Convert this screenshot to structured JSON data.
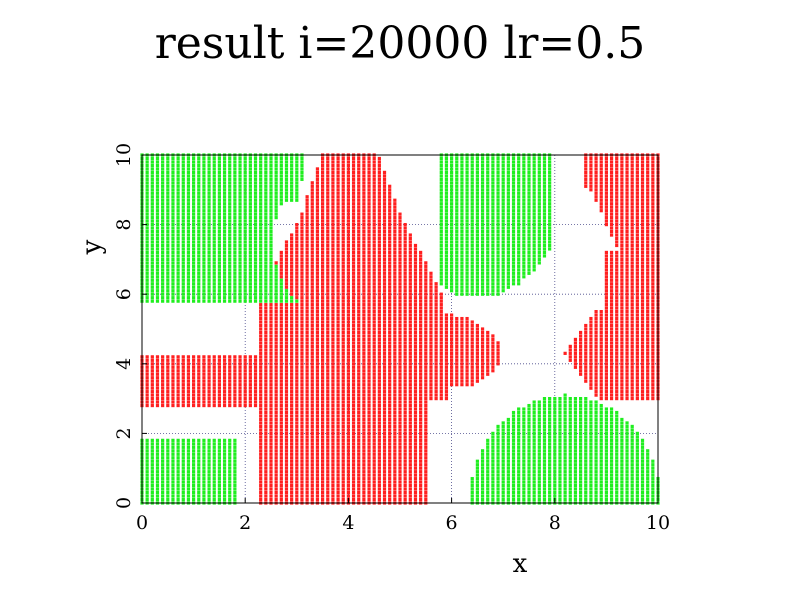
{
  "chart_data": {
    "type": "scatter",
    "title": "result i=20000 lr=0.5",
    "xlabel": "x",
    "ylabel": "y",
    "xlim": [
      0,
      10
    ],
    "ylim": [
      0,
      10
    ],
    "xticks": [
      "0",
      "2",
      "4",
      "6",
      "8",
      "10"
    ],
    "yticks": [
      "0",
      "2",
      "4",
      "6",
      "8",
      "10"
    ],
    "grid": true,
    "sample_spacing": 0.1,
    "colors": {
      "class_red": "#ff2020",
      "class_green": "#20ee20",
      "boundary_white": "#ffffff"
    },
    "series": [
      {
        "color": "#ff2020",
        "regions": [
          "center cross: x 2.3-5.5 for y 0-10 narrowing to x 3.5-4.6 near y 10",
          "left arm: x 0-2.5 for y 2.8-4.2",
          "right lobe: x 5.5-6.9 for y 3.5-4.8",
          "right band: x 8.6-10 for y 3-10 bulging left to x 8.2 at y 4.3"
        ]
      },
      {
        "color": "#20ee20",
        "regions": [
          "top-left: x 0-3.2 for y 5.7-10",
          "top-center: x 5.8-7.9 for y 6-10",
          "bottom-left: x 0-1.8 for y 0-1.8",
          "bottom-right: x 6.4-10 for y 0-3.1"
        ]
      }
    ]
  }
}
